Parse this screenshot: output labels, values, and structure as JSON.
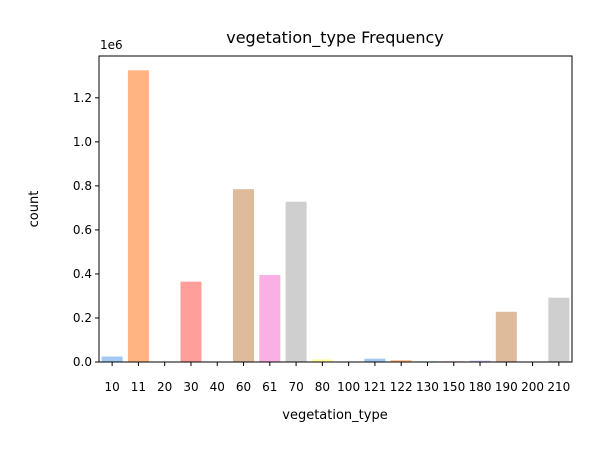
{
  "chart_data": {
    "type": "bar",
    "title": "vegetation_type Frequency",
    "xlabel": "vegetation_type",
    "ylabel": "count",
    "multiplier_label": "1e6",
    "scale": 1000000,
    "categories": [
      "10",
      "11",
      "20",
      "30",
      "40",
      "60",
      "61",
      "70",
      "80",
      "100",
      "121",
      "122",
      "130",
      "150",
      "180",
      "190",
      "200",
      "210"
    ],
    "values": [
      25000,
      1325000,
      1000,
      365000,
      1000,
      785000,
      395000,
      728000,
      12000,
      2000,
      15000,
      8000,
      3000,
      3000,
      6000,
      228000,
      2000,
      292000
    ],
    "colors": [
      "#a1c9f4",
      "#ffb482",
      "#8de5a1",
      "#ff9f9b",
      "#d0bbff",
      "#debb9b",
      "#fab0e4",
      "#cfcfcf",
      "#fffea3",
      "#b9f2f0",
      "#a1c9f4",
      "#ffb482",
      "#8de5a1",
      "#ff9f9b",
      "#d0bbff",
      "#debb9b",
      "#fab0e4",
      "#cfcfcf"
    ],
    "yticks": [
      "0.0",
      "0.2",
      "0.4",
      "0.6",
      "0.8",
      "1.0",
      "1.2"
    ],
    "ylim": [
      0,
      1390000
    ],
    "grid": false,
    "legend": "none"
  }
}
